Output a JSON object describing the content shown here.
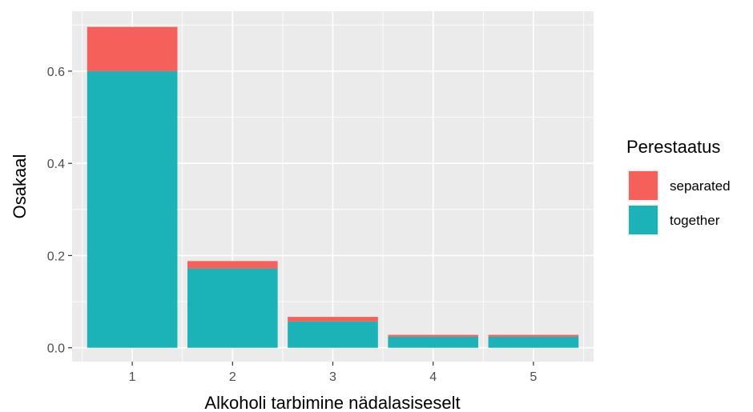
{
  "chart_data": {
    "type": "bar",
    "stacked": true,
    "categories": [
      "1",
      "2",
      "3",
      "4",
      "5"
    ],
    "series": [
      {
        "name": "together",
        "values": [
          0.6,
          0.172,
          0.057,
          0.024,
          0.024
        ],
        "color": "#1bb3b8"
      },
      {
        "name": "separated",
        "values": [
          0.096,
          0.016,
          0.01,
          0.004,
          0.004
        ],
        "color": "#f5605a"
      }
    ],
    "xlabel": "Alkoholi tarbimine nädalasiseselt",
    "ylabel": "Osakaal",
    "ylim": [
      -0.03,
      0.73
    ],
    "yticks": [
      0.0,
      0.2,
      0.4,
      0.6
    ],
    "ytick_labels": [
      "0.0",
      "0.2",
      "0.4",
      "0.6"
    ],
    "grid": true,
    "panel_background": "#ebebeb",
    "legend": {
      "title": "Perestaatus",
      "placement": "right",
      "entries": [
        "separated",
        "together"
      ]
    }
  }
}
